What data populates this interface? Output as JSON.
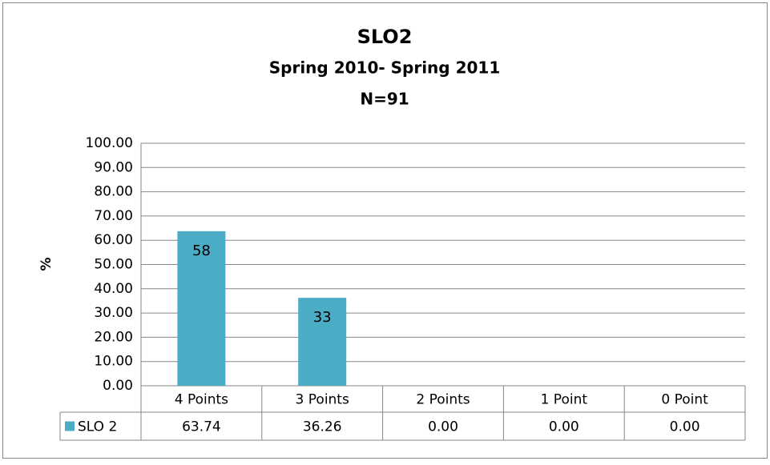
{
  "chart_data": {
    "type": "bar",
    "title": "SLO2",
    "subtitle": [
      "Spring 2010- Spring 2011",
      "N=91"
    ],
    "y_label": "%",
    "categories": [
      "4 Points",
      "3 Points",
      "2 Points",
      "1 Point",
      "0 Point"
    ],
    "series": [
      {
        "name": "SLO 2",
        "color": "#4bacc6",
        "values": [
          63.74,
          36.26,
          0,
          0,
          0
        ],
        "value_labels": [
          "63.74",
          "36.26",
          "0.00",
          "0.00",
          "0.00"
        ],
        "counts": [
          58,
          33,
          null,
          null,
          null
        ]
      }
    ],
    "ylim": [
      0,
      100
    ],
    "yticks": [
      {
        "value": 0,
        "label": "0.00"
      },
      {
        "value": 10,
        "label": "10.00"
      },
      {
        "value": 20,
        "label": "20.00"
      },
      {
        "value": 30,
        "label": "30.00"
      },
      {
        "value": 40,
        "label": "40.00"
      },
      {
        "value": 50,
        "label": "50.00"
      },
      {
        "value": 60,
        "label": "60.00"
      },
      {
        "value": 70,
        "label": "70.00"
      },
      {
        "value": 80,
        "label": "80.00"
      },
      {
        "value": 90,
        "label": "90.00"
      },
      {
        "value": 100,
        "label": "100.00"
      }
    ],
    "grid": true,
    "data_table": true
  }
}
